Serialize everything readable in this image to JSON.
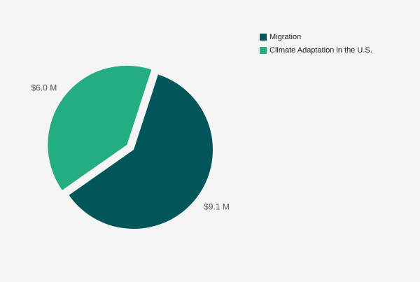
{
  "chart_data": {
    "type": "pie",
    "title": "",
    "unit": "$ M",
    "legend_position": "top-right",
    "series": [
      {
        "name": "Migration",
        "value": 9.1,
        "label": "$9.1 M",
        "color": "#02565a"
      },
      {
        "name": "Climate Adaptation in the U.S.",
        "value": 6.0,
        "label": "$6.0 M",
        "color": "#25ad82"
      }
    ],
    "exploded_slice": "Climate Adaptation in the U.S."
  }
}
